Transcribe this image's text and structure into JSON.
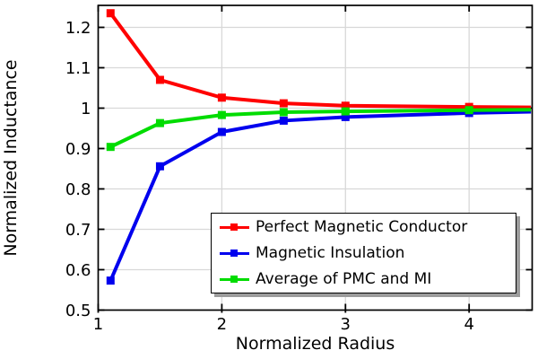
{
  "chart_data": {
    "type": "line",
    "title": "",
    "xlabel": "Normalized Radius",
    "ylabel": "Normalized Inductance",
    "xlim": [
      1,
      4.51
    ],
    "ylim": [
      0.5,
      1.2544
    ],
    "grid": true,
    "legend_position": "inside lower right",
    "x_ticks": {
      "values": [
        1,
        2,
        3,
        4
      ],
      "labels": [
        "1",
        "2",
        "3",
        "4"
      ]
    },
    "y_ticks": {
      "values": [
        0.5,
        0.6,
        0.7,
        0.8,
        0.9,
        1.0,
        1.1,
        1.2
      ],
      "labels": [
        "0.5",
        "0.6",
        "0.7",
        "0.8",
        "0.9",
        "1",
        "1.1",
        "1.2"
      ]
    },
    "x": [
      1.1,
      1.5,
      2,
      2.5,
      3,
      4,
      4.5
    ],
    "markers_at_x": [
      1.1,
      1.5,
      2,
      2.5,
      3,
      4
    ],
    "series": [
      {
        "name": "Perfect Magnetic Conductor",
        "color": "#ff0000",
        "marker": "square",
        "values": [
          1.235,
          1.07,
          1.026,
          1.012,
          1.006,
          1.003,
          1.002
        ]
      },
      {
        "name": "Magnetic Insulation",
        "color": "#0000ee",
        "marker": "square",
        "values": [
          0.573,
          0.856,
          0.941,
          0.969,
          0.978,
          0.988,
          0.991
        ]
      },
      {
        "name": "Average of PMC and MI",
        "color": "#00dc00",
        "marker": "square",
        "values": [
          0.904,
          0.963,
          0.983,
          0.99,
          0.992,
          0.995,
          0.996
        ]
      }
    ],
    "style": {
      "grid_color": "#d8d8d8",
      "axis_color": "#000000",
      "text_color": "#000000",
      "legend_shadow_color": "#9c9c9c",
      "background": "#ffffff"
    }
  }
}
